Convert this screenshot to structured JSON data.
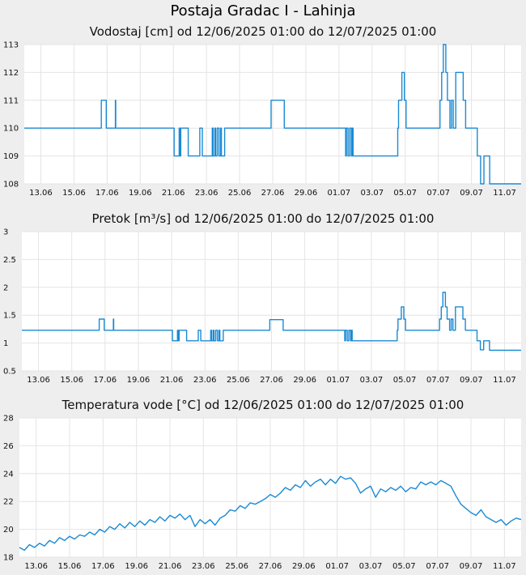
{
  "title": "Postaja Gradac I - Lahinja",
  "panels": [
    {
      "title": "Vodostaj [cm] od 12/06/2025 01:00 do 12/07/2025 01:00"
    },
    {
      "title": "Pretok [m³/s] od 12/06/2025 01:00 do 12/07/2025 01:00"
    },
    {
      "title": "Temperatura vode [°C] od 12/06/2025 01:00 do 12/07/2025 01:00"
    }
  ],
  "colors": {
    "line": "#1a8ad4",
    "grid": "#e4e4e4",
    "plot_bg": "#ffffff",
    "page_bg": "#eeeeee"
  },
  "chart_data": [
    {
      "type": "line",
      "title": "Vodostaj [cm] od 12/06/2025 01:00 do 12/07/2025 01:00",
      "x_unit": "days since 12/06/2025 01:00",
      "xlim": [
        0,
        30
      ],
      "ylim": [
        108,
        113
      ],
      "grid": true,
      "x_ticks": [
        {
          "x": 1,
          "label": "13.06"
        },
        {
          "x": 3,
          "label": "15.06"
        },
        {
          "x": 5,
          "label": "17.06"
        },
        {
          "x": 7,
          "label": "19.06"
        },
        {
          "x": 9,
          "label": "21.06"
        },
        {
          "x": 11,
          "label": "23.06"
        },
        {
          "x": 13,
          "label": "25.06"
        },
        {
          "x": 15,
          "label": "27.06"
        },
        {
          "x": 17,
          "label": "29.06"
        },
        {
          "x": 19,
          "label": "01.07"
        },
        {
          "x": 21,
          "label": "03.07"
        },
        {
          "x": 23,
          "label": "05.07"
        },
        {
          "x": 25,
          "label": "07.07"
        },
        {
          "x": 27,
          "label": "09.07"
        },
        {
          "x": 29,
          "label": "11.07"
        }
      ],
      "y_ticks": [
        {
          "y": 108,
          "label": "108"
        },
        {
          "y": 109,
          "label": "109"
        },
        {
          "y": 110,
          "label": "110"
        },
        {
          "y": 111,
          "label": "111"
        },
        {
          "y": 112,
          "label": "112"
        },
        {
          "y": 113,
          "label": "113"
        }
      ],
      "step": true,
      "points": [
        [
          0,
          110
        ],
        [
          4.6,
          110
        ],
        [
          4.65,
          111
        ],
        [
          4.9,
          111
        ],
        [
          4.95,
          110
        ],
        [
          5.45,
          110
        ],
        [
          5.5,
          111
        ],
        [
          5.52,
          110
        ],
        [
          9,
          110
        ],
        [
          9.05,
          109
        ],
        [
          9.3,
          109
        ],
        [
          9.35,
          110
        ],
        [
          9.4,
          109
        ],
        [
          9.45,
          110
        ],
        [
          9.85,
          110
        ],
        [
          9.9,
          109
        ],
        [
          10.55,
          109
        ],
        [
          10.6,
          110
        ],
        [
          10.7,
          110
        ],
        [
          10.75,
          109
        ],
        [
          11.3,
          109
        ],
        [
          11.35,
          110
        ],
        [
          11.4,
          109
        ],
        [
          11.5,
          110
        ],
        [
          11.55,
          109
        ],
        [
          11.65,
          110
        ],
        [
          11.75,
          109
        ],
        [
          11.85,
          110
        ],
        [
          11.9,
          109
        ],
        [
          12.05,
          109
        ],
        [
          12.1,
          110
        ],
        [
          14.8,
          110
        ],
        [
          14.9,
          111
        ],
        [
          15.65,
          111
        ],
        [
          15.7,
          110
        ],
        [
          19.35,
          110
        ],
        [
          19.4,
          109
        ],
        [
          19.45,
          110
        ],
        [
          19.55,
          109
        ],
        [
          19.65,
          110
        ],
        [
          19.75,
          109
        ],
        [
          19.8,
          110
        ],
        [
          19.85,
          109
        ],
        [
          22.5,
          109
        ],
        [
          22.55,
          110
        ],
        [
          22.6,
          111
        ],
        [
          22.8,
          112
        ],
        [
          22.95,
          111
        ],
        [
          23.05,
          110
        ],
        [
          25.05,
          110
        ],
        [
          25.1,
          111
        ],
        [
          25.2,
          112
        ],
        [
          25.3,
          113
        ],
        [
          25.45,
          112
        ],
        [
          25.55,
          111
        ],
        [
          25.7,
          110
        ],
        [
          25.8,
          111
        ],
        [
          25.9,
          110
        ],
        [
          26.05,
          112
        ],
        [
          26.4,
          112
        ],
        [
          26.5,
          111
        ],
        [
          26.65,
          110
        ],
        [
          27.25,
          110
        ],
        [
          27.35,
          109
        ],
        [
          27.5,
          109
        ],
        [
          27.55,
          108
        ],
        [
          27.7,
          108
        ],
        [
          27.75,
          109
        ],
        [
          28,
          109
        ],
        [
          28.1,
          108
        ],
        [
          30,
          108
        ]
      ]
    },
    {
      "type": "line",
      "title": "Pretok [m³/s] od 12/06/2025 01:00 do 12/07/2025 01:00",
      "x_unit": "days since 12/06/2025 01:00",
      "xlim": [
        0,
        30
      ],
      "ylim": [
        0.5,
        3
      ],
      "grid": true,
      "x_ticks": [
        {
          "x": 1,
          "label": "13.06"
        },
        {
          "x": 3,
          "label": "15.06"
        },
        {
          "x": 5,
          "label": "17.06"
        },
        {
          "x": 7,
          "label": "19.06"
        },
        {
          "x": 9,
          "label": "21.06"
        },
        {
          "x": 11,
          "label": "23.06"
        },
        {
          "x": 13,
          "label": "25.06"
        },
        {
          "x": 15,
          "label": "27.06"
        },
        {
          "x": 17,
          "label": "29.06"
        },
        {
          "x": 19,
          "label": "01.07"
        },
        {
          "x": 21,
          "label": "03.07"
        },
        {
          "x": 23,
          "label": "05.07"
        },
        {
          "x": 25,
          "label": "07.07"
        },
        {
          "x": 27,
          "label": "09.07"
        },
        {
          "x": 29,
          "label": "11.07"
        }
      ],
      "y_ticks": [
        {
          "y": 0.5,
          "label": "0.5"
        },
        {
          "y": 1,
          "label": "1"
        },
        {
          "y": 1.5,
          "label": "1.5"
        },
        {
          "y": 2,
          "label": "2"
        },
        {
          "y": 2.5,
          "label": "2.5"
        },
        {
          "y": 3,
          "label": "3"
        }
      ],
      "step": true,
      "points": [
        [
          0,
          1.23
        ],
        [
          4.6,
          1.23
        ],
        [
          4.65,
          1.43
        ],
        [
          4.9,
          1.43
        ],
        [
          4.95,
          1.23
        ],
        [
          5.45,
          1.23
        ],
        [
          5.5,
          1.43
        ],
        [
          5.52,
          1.23
        ],
        [
          9,
          1.23
        ],
        [
          9.05,
          1.04
        ],
        [
          9.3,
          1.04
        ],
        [
          9.35,
          1.23
        ],
        [
          9.4,
          1.04
        ],
        [
          9.45,
          1.23
        ],
        [
          9.85,
          1.23
        ],
        [
          9.9,
          1.04
        ],
        [
          10.55,
          1.04
        ],
        [
          10.6,
          1.23
        ],
        [
          10.7,
          1.23
        ],
        [
          10.75,
          1.04
        ],
        [
          11.3,
          1.04
        ],
        [
          11.35,
          1.23
        ],
        [
          11.4,
          1.04
        ],
        [
          11.5,
          1.23
        ],
        [
          11.55,
          1.04
        ],
        [
          11.65,
          1.23
        ],
        [
          11.75,
          1.04
        ],
        [
          11.85,
          1.23
        ],
        [
          11.9,
          1.04
        ],
        [
          12.05,
          1.04
        ],
        [
          12.1,
          1.23
        ],
        [
          14.8,
          1.23
        ],
        [
          14.9,
          1.42
        ],
        [
          15.65,
          1.42
        ],
        [
          15.7,
          1.23
        ],
        [
          19.35,
          1.23
        ],
        [
          19.4,
          1.04
        ],
        [
          19.45,
          1.23
        ],
        [
          19.55,
          1.04
        ],
        [
          19.65,
          1.23
        ],
        [
          19.75,
          1.04
        ],
        [
          19.8,
          1.23
        ],
        [
          19.85,
          1.04
        ],
        [
          22.5,
          1.04
        ],
        [
          22.55,
          1.23
        ],
        [
          22.6,
          1.43
        ],
        [
          22.8,
          1.65
        ],
        [
          22.95,
          1.43
        ],
        [
          23.05,
          1.23
        ],
        [
          25.05,
          1.23
        ],
        [
          25.1,
          1.43
        ],
        [
          25.2,
          1.65
        ],
        [
          25.3,
          1.91
        ],
        [
          25.45,
          1.65
        ],
        [
          25.55,
          1.43
        ],
        [
          25.7,
          1.23
        ],
        [
          25.8,
          1.43
        ],
        [
          25.9,
          1.23
        ],
        [
          26.05,
          1.65
        ],
        [
          26.4,
          1.65
        ],
        [
          26.5,
          1.43
        ],
        [
          26.65,
          1.23
        ],
        [
          27.25,
          1.23
        ],
        [
          27.35,
          1.04
        ],
        [
          27.5,
          1.04
        ],
        [
          27.55,
          0.88
        ],
        [
          27.7,
          0.88
        ],
        [
          27.75,
          1.04
        ],
        [
          28,
          1.04
        ],
        [
          28.1,
          0.87
        ],
        [
          30,
          0.87
        ]
      ]
    },
    {
      "type": "line",
      "title": "Temperatura vode [°C] od 12/06/2025 01:00 do 12/07/2025 01:00",
      "x_unit": "days since 12/06/2025 01:00",
      "xlim": [
        0,
        30
      ],
      "ylim": [
        18,
        28
      ],
      "grid": true,
      "x_ticks": [
        {
          "x": 1,
          "label": "13.06"
        },
        {
          "x": 3,
          "label": "15.06"
        },
        {
          "x": 5,
          "label": "17.06"
        },
        {
          "x": 7,
          "label": "19.06"
        },
        {
          "x": 9,
          "label": "21.06"
        },
        {
          "x": 11,
          "label": "23.06"
        },
        {
          "x": 13,
          "label": "25.06"
        },
        {
          "x": 15,
          "label": "27.06"
        },
        {
          "x": 17,
          "label": "29.06"
        },
        {
          "x": 19,
          "label": "01.07"
        },
        {
          "x": 21,
          "label": "03.07"
        },
        {
          "x": 23,
          "label": "05.07"
        },
        {
          "x": 25,
          "label": "07.07"
        },
        {
          "x": 27,
          "label": "09.07"
        },
        {
          "x": 29,
          "label": "11.07"
        }
      ],
      "y_ticks": [
        {
          "y": 18,
          "label": "18"
        },
        {
          "y": 20,
          "label": "20"
        },
        {
          "y": 22,
          "label": "22"
        },
        {
          "y": 24,
          "label": "24"
        },
        {
          "y": 26,
          "label": "26"
        },
        {
          "y": 28,
          "label": "28"
        }
      ],
      "step": false,
      "points": [
        [
          0,
          18.7
        ],
        [
          0.3,
          18.5
        ],
        [
          0.6,
          18.9
        ],
        [
          0.9,
          18.7
        ],
        [
          1.2,
          19.0
        ],
        [
          1.5,
          18.8
        ],
        [
          1.8,
          19.2
        ],
        [
          2.1,
          19.0
        ],
        [
          2.4,
          19.4
        ],
        [
          2.7,
          19.2
        ],
        [
          3.0,
          19.5
        ],
        [
          3.3,
          19.3
        ],
        [
          3.6,
          19.6
        ],
        [
          3.9,
          19.5
        ],
        [
          4.2,
          19.8
        ],
        [
          4.5,
          19.6
        ],
        [
          4.8,
          20.0
        ],
        [
          5.1,
          19.8
        ],
        [
          5.4,
          20.2
        ],
        [
          5.7,
          20.0
        ],
        [
          6.0,
          20.4
        ],
        [
          6.3,
          20.1
        ],
        [
          6.6,
          20.5
        ],
        [
          6.9,
          20.2
        ],
        [
          7.2,
          20.6
        ],
        [
          7.5,
          20.3
        ],
        [
          7.8,
          20.7
        ],
        [
          8.1,
          20.5
        ],
        [
          8.4,
          20.9
        ],
        [
          8.7,
          20.6
        ],
        [
          9.0,
          21.0
        ],
        [
          9.3,
          20.8
        ],
        [
          9.6,
          21.1
        ],
        [
          9.9,
          20.7
        ],
        [
          10.2,
          21.0
        ],
        [
          10.5,
          20.2
        ],
        [
          10.8,
          20.7
        ],
        [
          11.1,
          20.4
        ],
        [
          11.4,
          20.7
        ],
        [
          11.7,
          20.3
        ],
        [
          12.0,
          20.8
        ],
        [
          12.3,
          21.0
        ],
        [
          12.6,
          21.4
        ],
        [
          12.9,
          21.3
        ],
        [
          13.2,
          21.7
        ],
        [
          13.5,
          21.5
        ],
        [
          13.8,
          21.9
        ],
        [
          14.1,
          21.8
        ],
        [
          14.4,
          22.0
        ],
        [
          14.7,
          22.2
        ],
        [
          15.0,
          22.5
        ],
        [
          15.3,
          22.3
        ],
        [
          15.6,
          22.6
        ],
        [
          15.9,
          23.0
        ],
        [
          16.2,
          22.8
        ],
        [
          16.5,
          23.2
        ],
        [
          16.8,
          23.0
        ],
        [
          17.1,
          23.5
        ],
        [
          17.4,
          23.1
        ],
        [
          17.7,
          23.4
        ],
        [
          18.0,
          23.6
        ],
        [
          18.3,
          23.2
        ],
        [
          18.6,
          23.6
        ],
        [
          18.9,
          23.3
        ],
        [
          19.2,
          23.8
        ],
        [
          19.5,
          23.6
        ],
        [
          19.8,
          23.7
        ],
        [
          20.1,
          23.3
        ],
        [
          20.4,
          22.6
        ],
        [
          20.7,
          22.9
        ],
        [
          21.0,
          23.1
        ],
        [
          21.3,
          22.3
        ],
        [
          21.6,
          22.9
        ],
        [
          21.9,
          22.7
        ],
        [
          22.2,
          23.0
        ],
        [
          22.5,
          22.8
        ],
        [
          22.8,
          23.1
        ],
        [
          23.1,
          22.7
        ],
        [
          23.4,
          23.0
        ],
        [
          23.7,
          22.9
        ],
        [
          24.0,
          23.4
        ],
        [
          24.3,
          23.2
        ],
        [
          24.6,
          23.4
        ],
        [
          24.9,
          23.2
        ],
        [
          25.2,
          23.5
        ],
        [
          25.5,
          23.3
        ],
        [
          25.8,
          23.1
        ],
        [
          26.1,
          22.4
        ],
        [
          26.4,
          21.8
        ],
        [
          26.7,
          21.5
        ],
        [
          27.0,
          21.2
        ],
        [
          27.3,
          21.0
        ],
        [
          27.6,
          21.4
        ],
        [
          27.9,
          20.9
        ],
        [
          28.2,
          20.7
        ],
        [
          28.5,
          20.5
        ],
        [
          28.8,
          20.7
        ],
        [
          29.1,
          20.3
        ],
        [
          29.4,
          20.6
        ],
        [
          29.7,
          20.8
        ],
        [
          30,
          20.7
        ]
      ]
    }
  ]
}
